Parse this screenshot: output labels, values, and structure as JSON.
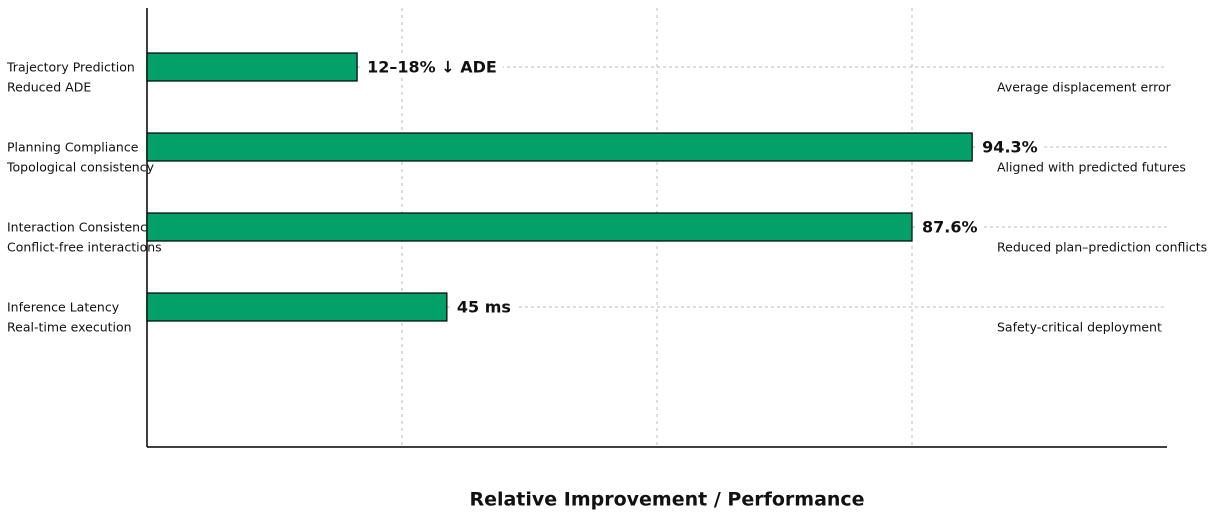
{
  "chart_data": {
    "type": "bar",
    "orientation": "horizontal",
    "categories": [
      "Trajectory Prediction",
      "Planning Compliance",
      "Interaction Consistency",
      "Inference Latency"
    ],
    "sublabels": [
      "Reduced ADE",
      "Topological consistency",
      "Conflict-free interactions",
      "Real-time execution"
    ],
    "values": [
      20.6,
      80.9,
      75,
      29.4
    ],
    "annotations": [
      "12–18% ↓ ADE",
      "94.3%",
      "87.6%",
      "45 ms"
    ],
    "descriptions": [
      "Average displacement error",
      "Aligned with predicted futures",
      "Reduced plan–prediction conflicts",
      "Safety-critical deployment"
    ],
    "xlabel": "Relative Improvement / Performance",
    "color": "#03a06a",
    "xlim": [
      0,
      100
    ],
    "xticks": [
      25,
      50,
      75
    ],
    "grid": true
  }
}
